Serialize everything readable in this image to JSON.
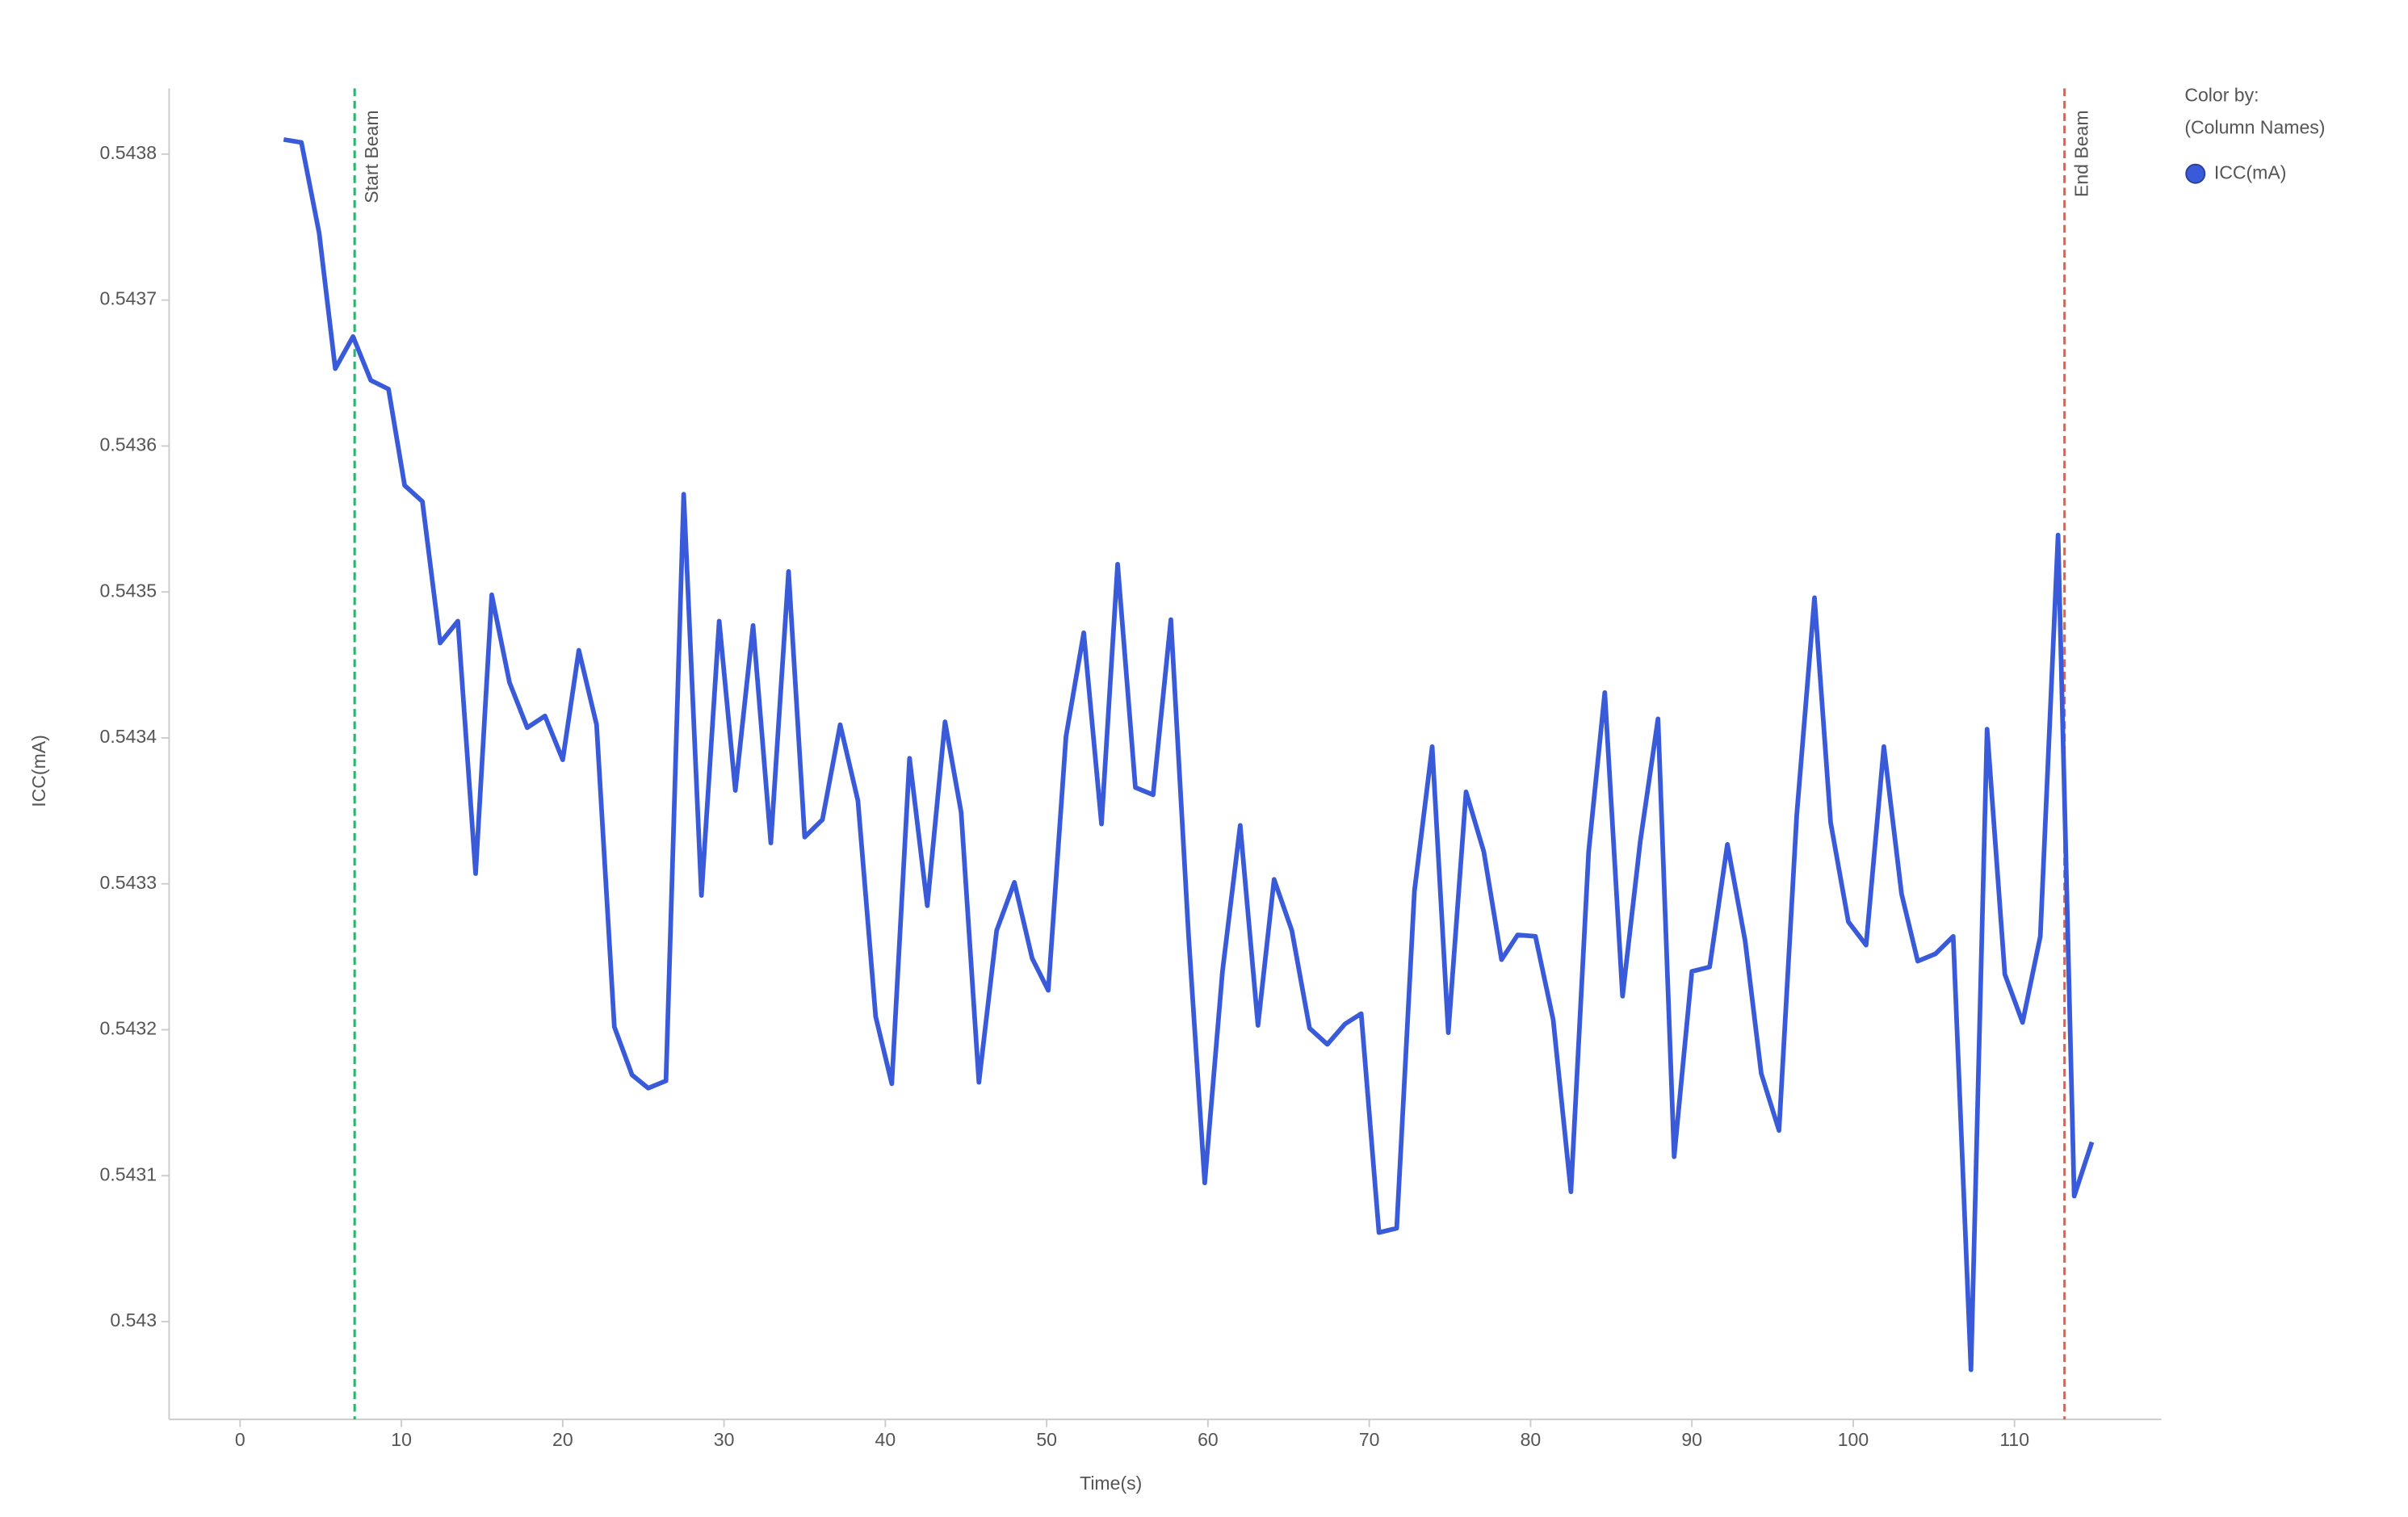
{
  "chart_data": {
    "type": "line",
    "xlabel": "Time(s)",
    "ylabel": "ICC(mA)",
    "legend_title": [
      "Color by:",
      "(Column Names)"
    ],
    "legend": "top-right",
    "xlim": [
      -4.4,
      119.1
    ],
    "ylim": [
      0.542933,
      0.543845
    ],
    "xticks": [
      0,
      10,
      20,
      30,
      40,
      50,
      60,
      70,
      80,
      90,
      100,
      110
    ],
    "yticks": [
      0.543,
      0.5431,
      0.5432,
      0.5433,
      0.5434,
      0.5435,
      0.5436,
      0.5437,
      0.5438
    ],
    "x": [
      2.7,
      3.8,
      4.9,
      5.9,
      7.0,
      8.1,
      9.2,
      10.2,
      11.3,
      12.4,
      13.5,
      14.6,
      15.6,
      16.7,
      17.8,
      18.9,
      20.0,
      21.0,
      22.1,
      23.2,
      24.3,
      25.3,
      26.4,
      27.5,
      28.6,
      29.7,
      30.7,
      31.8,
      32.9,
      34.0,
      35.0,
      36.1,
      37.2,
      38.3,
      39.4,
      40.4,
      41.5,
      42.6,
      43.7,
      44.7,
      45.8,
      46.9,
      48.0,
      49.1,
      50.1,
      51.2,
      52.3,
      53.4,
      54.4,
      55.5,
      56.6,
      57.7,
      58.8,
      59.8,
      60.9,
      62.0,
      63.1,
      64.1,
      65.2,
      66.3,
      67.4,
      68.5,
      69.5,
      70.6,
      71.7,
      72.8,
      73.9,
      74.9,
      76.0,
      77.1,
      78.2,
      79.2,
      80.3,
      81.4,
      82.5,
      83.6,
      84.6,
      85.7,
      86.8,
      87.9,
      88.9,
      90.0,
      91.1,
      92.2,
      93.3,
      94.3,
      95.4,
      96.5,
      97.6,
      98.6,
      99.7,
      100.8,
      101.9,
      103.0,
      104.0,
      105.1,
      106.2,
      107.3,
      108.3,
      109.4,
      110.5,
      111.6,
      112.7,
      113.7,
      114.8
    ],
    "series": [
      {
        "name": "ICC(mA)",
        "color": "#3a5bd9",
        "values": [
          0.54381,
          0.543808,
          0.543746,
          0.543653,
          0.543675,
          0.543645,
          0.543639,
          0.543573,
          0.543562,
          0.543465,
          0.54348,
          0.543307,
          0.543498,
          0.543438,
          0.543407,
          0.543415,
          0.543385,
          0.54346,
          0.543409,
          0.543202,
          0.543169,
          0.54316,
          0.543165,
          0.543567,
          0.543292,
          0.54348,
          0.543364,
          0.543477,
          0.543328,
          0.543514,
          0.543332,
          0.543344,
          0.543409,
          0.543357,
          0.543209,
          0.543163,
          0.543386,
          0.543285,
          0.543411,
          0.543349,
          0.543164,
          0.543268,
          0.543301,
          0.543249,
          0.543227,
          0.543401,
          0.543472,
          0.543341,
          0.543519,
          0.543366,
          0.543361,
          0.543481,
          0.543264,
          0.543095,
          0.54324,
          0.54334,
          0.543203,
          0.543303,
          0.543268,
          0.543201,
          0.54319,
          0.543204,
          0.543211,
          0.543061,
          0.543064,
          0.543295,
          0.543394,
          0.543198,
          0.543363,
          0.543322,
          0.543248,
          0.543265,
          0.543264,
          0.543207,
          0.543089,
          0.543322,
          0.543431,
          0.543223,
          0.543329,
          0.543413,
          0.543113,
          0.54324,
          0.543243,
          0.543327,
          0.543261,
          0.54317,
          0.543131,
          0.543347,
          0.543496,
          0.543342,
          0.543274,
          0.543258,
          0.543394,
          0.543293,
          0.543247,
          0.543252,
          0.543264,
          0.542967,
          0.543406,
          0.543238,
          0.543205,
          0.543264,
          0.543539,
          0.543086,
          0.543123
        ]
      }
    ],
    "annotations": [
      {
        "label": "Start Beam",
        "x": 7.1,
        "color": "#2db36f"
      },
      {
        "label": "End Beam",
        "x": 113.1,
        "color": "#e8604c"
      }
    ]
  }
}
